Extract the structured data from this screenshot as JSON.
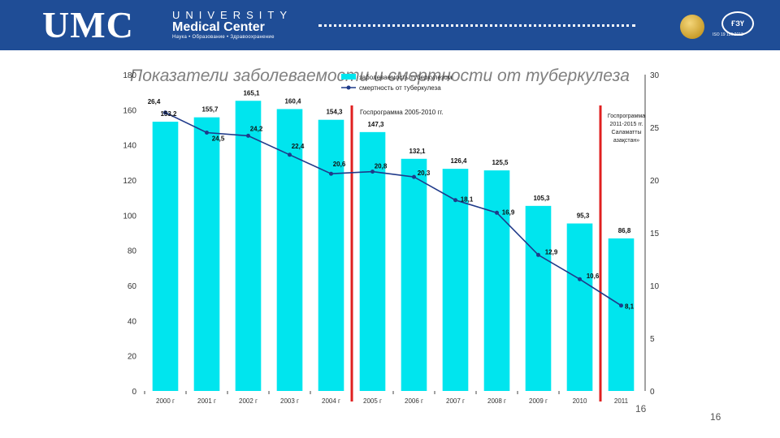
{
  "header": {
    "logo_main": "UMC",
    "logo_university": "UNIVERSITY",
    "logo_subtitle": "Medical Center",
    "logo_tagline": "Наука • Образование • Здравоохранение",
    "emblem_text": "ҒЗҮ",
    "iso_text": "ISO 19 196:2012",
    "colors": {
      "header_bg": "#1f4d96"
    }
  },
  "slide_title": "Показатели заболеваемости и смертности от туберкулеза",
  "page_numbers": {
    "inner": "16",
    "outer": "16"
  },
  "chart_data": {
    "type": "bar",
    "categories": [
      "2000 г",
      "2001 г",
      "2002 г",
      "2003 г",
      "2004 г",
      "2005 г",
      "2006 г",
      "2007 г",
      "2008 г",
      "2009 г",
      "2010",
      "2011"
    ],
    "series": [
      {
        "name": "заболеваемость туберкулезом",
        "type": "bar",
        "axis": "left",
        "values": [
          153.2,
          155.7,
          165.1,
          160.4,
          154.3,
          147.3,
          132.1,
          126.4,
          125.5,
          105.3,
          95.3,
          86.8
        ],
        "labels": [
          "153,2",
          "155,7",
          "165,1",
          "160,4",
          "154,3",
          "147,3",
          "132,1",
          "126,4",
          "125,5",
          "105,3",
          "95,3",
          "86,8"
        ],
        "color": "#00e5ee"
      },
      {
        "name": "смертность от туберкулеза",
        "type": "line",
        "axis": "right",
        "values": [
          26.4,
          24.5,
          24.2,
          22.4,
          20.6,
          20.8,
          20.3,
          18.1,
          16.9,
          12.9,
          10.6,
          8.1
        ],
        "labels": [
          "26,4",
          "24,5",
          "24,2",
          "22,4",
          "20,6",
          "20,8",
          "20,3",
          "18,1",
          "16,9",
          "12,9",
          "10,6",
          "8,1"
        ],
        "color": "#1f3a8a"
      }
    ],
    "y_left": {
      "min": 0,
      "max": 180,
      "ticks": [
        0,
        20,
        40,
        60,
        80,
        100,
        120,
        140,
        160,
        180
      ]
    },
    "y_right": {
      "min": 0,
      "max": 30,
      "ticks": [
        0,
        5,
        10,
        15,
        20,
        25,
        30
      ]
    },
    "annotations": [
      {
        "text": "Госпрограмма 2005-2010 гг.",
        "between": [
          "2004 г",
          "2005 г"
        ]
      },
      {
        "text": "Госпрограмма 2011-2015 гг. «Саламатты Қазақстан»",
        "between": [
          "2010",
          "2011"
        ]
      }
    ],
    "marker_color": "#e02020",
    "legend_position": "top-center"
  }
}
